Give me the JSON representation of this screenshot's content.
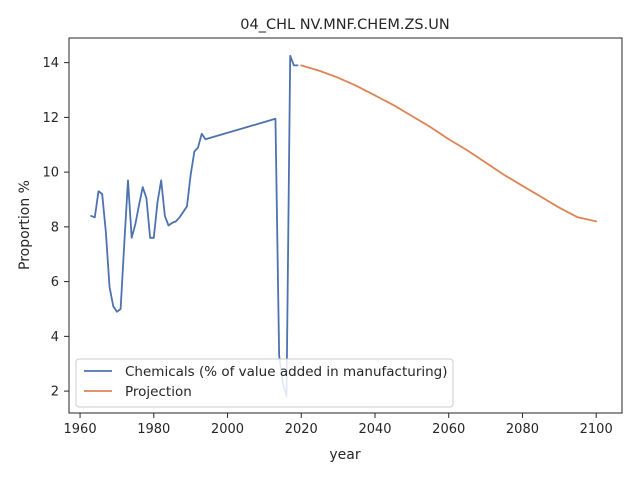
{
  "chart_data": {
    "type": "line",
    "title": "04_CHL NV.MNF.CHEM.ZS.UN",
    "xlabel": "year",
    "ylabel": "Proportion %",
    "xlim": [
      1957,
      2107
    ],
    "ylim": [
      1.2,
      14.9
    ],
    "xticks": [
      1960,
      1980,
      2000,
      2020,
      2040,
      2060,
      2080,
      2100
    ],
    "yticks": [
      2,
      4,
      6,
      8,
      10,
      12,
      14
    ],
    "grid": false,
    "legend_position": "lower-left",
    "series": [
      {
        "name": "Chemicals (% of value added in manufacturing)",
        "color": "#4c72b0",
        "points": [
          [
            1963,
            8.4
          ],
          [
            1964,
            8.35
          ],
          [
            1965,
            9.3
          ],
          [
            1966,
            9.2
          ],
          [
            1967,
            7.8
          ],
          [
            1968,
            5.8
          ],
          [
            1969,
            5.1
          ],
          [
            1970,
            4.9
          ],
          [
            1971,
            5.0
          ],
          [
            1972,
            7.4
          ],
          [
            1973,
            9.7
          ],
          [
            1974,
            7.6
          ],
          [
            1975,
            8.1
          ],
          [
            1976,
            8.8
          ],
          [
            1977,
            9.45
          ],
          [
            1978,
            9.05
          ],
          [
            1979,
            7.6
          ],
          [
            1980,
            7.6
          ],
          [
            1981,
            8.9
          ],
          [
            1982,
            9.7
          ],
          [
            1983,
            8.4
          ],
          [
            1984,
            8.05
          ],
          [
            1985,
            8.15
          ],
          [
            1986,
            8.2
          ],
          [
            1987,
            8.35
          ],
          [
            1988,
            8.55
          ],
          [
            1989,
            8.75
          ],
          [
            1990,
            9.9
          ],
          [
            1991,
            10.75
          ],
          [
            1992,
            10.9
          ],
          [
            1993,
            11.4
          ],
          [
            1994,
            11.2
          ],
          [
            2013,
            11.95
          ],
          [
            2014,
            3.3
          ],
          [
            2015,
            2.3
          ],
          [
            2016,
            1.8
          ],
          [
            2017,
            14.25
          ],
          [
            2018,
            13.9
          ],
          [
            2019,
            13.9
          ]
        ]
      },
      {
        "name": "Projection",
        "color": "#dd8452",
        "points": [
          [
            2020,
            13.9
          ],
          [
            2025,
            13.7
          ],
          [
            2030,
            13.45
          ],
          [
            2035,
            13.15
          ],
          [
            2040,
            12.8
          ],
          [
            2045,
            12.45
          ],
          [
            2050,
            12.05
          ],
          [
            2055,
            11.65
          ],
          [
            2060,
            11.2
          ],
          [
            2065,
            10.8
          ],
          [
            2070,
            10.35
          ],
          [
            2075,
            9.9
          ],
          [
            2080,
            9.5
          ],
          [
            2085,
            9.1
          ],
          [
            2090,
            8.7
          ],
          [
            2095,
            8.35
          ],
          [
            2100,
            8.2
          ]
        ]
      }
    ]
  }
}
